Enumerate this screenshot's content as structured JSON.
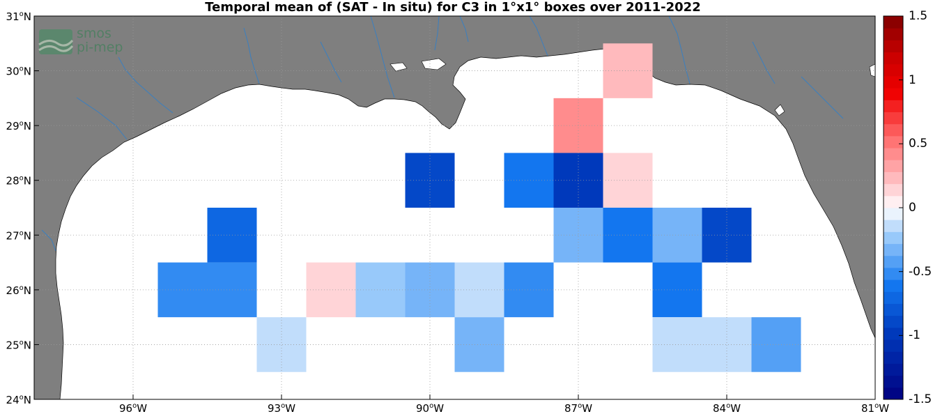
{
  "title": "Temporal mean of (SAT - In situ) for C3 in 1°x1° boxes over 2011-2022",
  "logo": {
    "line1": "smos",
    "line2": "pi-mep"
  },
  "map": {
    "lon_range": [
      -98,
      -81
    ],
    "lat_range": [
      24,
      31
    ],
    "land_color": "#7f7f7f",
    "ocean_color": "#ffffff",
    "river_color": "#3a7fc0",
    "grid": true
  },
  "lon_ticks": [
    {
      "value": -96,
      "deg": "96",
      "hemi": "W"
    },
    {
      "value": -93,
      "deg": "93",
      "hemi": "W"
    },
    {
      "value": -90,
      "deg": "90",
      "hemi": "W"
    },
    {
      "value": -87,
      "deg": "87",
      "hemi": "W"
    },
    {
      "value": -84,
      "deg": "84",
      "hemi": "W"
    },
    {
      "value": -81,
      "deg": "81",
      "hemi": "W"
    }
  ],
  "lat_ticks": [
    {
      "value": 24,
      "deg": "24",
      "hemi": "N"
    },
    {
      "value": 25,
      "deg": "25",
      "hemi": "N"
    },
    {
      "value": 26,
      "deg": "26",
      "hemi": "N"
    },
    {
      "value": 27,
      "deg": "27",
      "hemi": "N"
    },
    {
      "value": 28,
      "deg": "28",
      "hemi": "N"
    },
    {
      "value": 29,
      "deg": "29",
      "hemi": "N"
    },
    {
      "value": 30,
      "deg": "30",
      "hemi": "N"
    },
    {
      "value": 31,
      "deg": "31",
      "hemi": "N"
    }
  ],
  "colorbar": {
    "min": -1.5,
    "max": 1.5,
    "levels": 32,
    "tick_labels": [
      {
        "value": 1.5,
        "text": "1.5"
      },
      {
        "value": 1.0,
        "text": "1"
      },
      {
        "value": 0.5,
        "text": "0.5"
      },
      {
        "value": 0.0,
        "text": "0"
      },
      {
        "value": -0.5,
        "text": "-0.5"
      },
      {
        "value": -1.0,
        "text": "-1"
      },
      {
        "value": -1.5,
        "text": "-1.5"
      }
    ]
  },
  "chart_data": {
    "type": "heatmap",
    "title": "Temporal mean of (SAT - In situ) for C3 in 1°x1° boxes over 2011-2022",
    "xlabel": "",
    "ylabel": "",
    "xlim": [
      -98,
      -81
    ],
    "ylim": [
      24,
      31
    ],
    "cell_size_deg": 1,
    "cells": [
      {
        "lon_center": -86,
        "lat_center": 30,
        "value": 0.28
      },
      {
        "lon_center": -87,
        "lat_center": 29,
        "value": 0.45
      },
      {
        "lon_center": -90,
        "lat_center": 28,
        "value": -0.85
      },
      {
        "lon_center": -88,
        "lat_center": 28,
        "value": -0.6
      },
      {
        "lon_center": -87,
        "lat_center": 28,
        "value": -1.0
      },
      {
        "lon_center": -86,
        "lat_center": 28,
        "value": 0.15
      },
      {
        "lon_center": -94,
        "lat_center": 27,
        "value": -0.75
      },
      {
        "lon_center": -87,
        "lat_center": 27,
        "value": -0.35
      },
      {
        "lon_center": -86,
        "lat_center": 27,
        "value": -0.65
      },
      {
        "lon_center": -85,
        "lat_center": 27,
        "value": -0.35
      },
      {
        "lon_center": -84,
        "lat_center": 27,
        "value": -0.85
      },
      {
        "lon_center": -95,
        "lat_center": 26,
        "value": -0.55
      },
      {
        "lon_center": -94,
        "lat_center": 26,
        "value": -0.55
      },
      {
        "lon_center": -92,
        "lat_center": 26,
        "value": 0.1
      },
      {
        "lon_center": -91,
        "lat_center": 26,
        "value": -0.25
      },
      {
        "lon_center": -90,
        "lat_center": 26,
        "value": -0.35
      },
      {
        "lon_center": -89,
        "lat_center": 26,
        "value": -0.15
      },
      {
        "lon_center": -88,
        "lat_center": 26,
        "value": -0.55
      },
      {
        "lon_center": -85,
        "lat_center": 26,
        "value": -0.65
      },
      {
        "lon_center": -93,
        "lat_center": 25,
        "value": -0.15
      },
      {
        "lon_center": -89,
        "lat_center": 25,
        "value": -0.35
      },
      {
        "lon_center": -85,
        "lat_center": 25,
        "value": -0.15
      },
      {
        "lon_center": -84,
        "lat_center": 25,
        "value": -0.15
      },
      {
        "lon_center": -83,
        "lat_center": 25,
        "value": -0.45
      }
    ]
  }
}
